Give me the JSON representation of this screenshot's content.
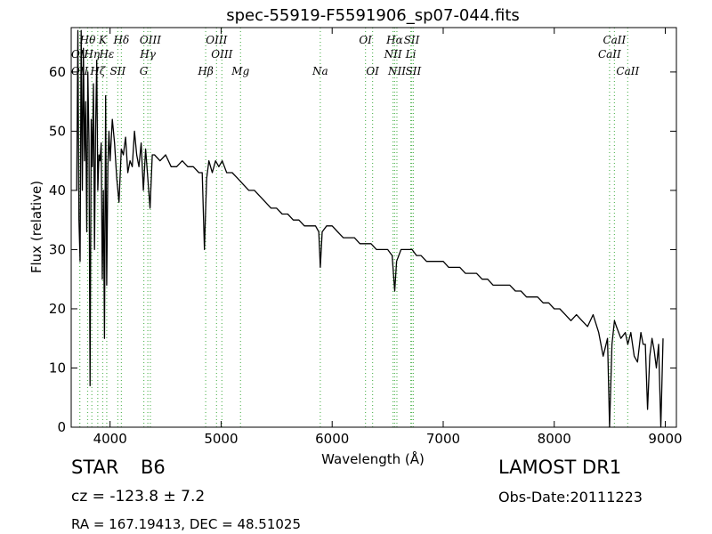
{
  "chart_data": {
    "type": "line",
    "title": "spec-55919-F5591906_sp07-044.fits",
    "xlabel": "Wavelength (Å)",
    "ylabel": "Flux (relative)",
    "xlim": [
      3650,
      9100
    ],
    "ylim": [
      0,
      67.5
    ],
    "xticks": [
      4000,
      5000,
      6000,
      7000,
      8000,
      9000
    ],
    "xtick_labels": [
      "4000",
      "5000",
      "6000",
      "7000",
      "8000",
      "9000"
    ],
    "yticks": [
      0,
      10,
      20,
      30,
      40,
      50,
      60
    ],
    "ytick_labels": [
      "0",
      "10",
      "20",
      "30",
      "40",
      "50",
      "60"
    ],
    "grid": false,
    "line_color": "#000000",
    "marker_color": "#5cb85c",
    "spectrum": {
      "x": [
        3700,
        3710,
        3720,
        3730,
        3740,
        3750,
        3760,
        3770,
        3780,
        3790,
        3800,
        3810,
        3820,
        3830,
        3840,
        3850,
        3860,
        3870,
        3880,
        3890,
        3900,
        3910,
        3920,
        3930,
        3940,
        3950,
        3960,
        3970,
        3980,
        3990,
        4000,
        4020,
        4040,
        4060,
        4080,
        4101,
        4120,
        4140,
        4160,
        4180,
        4200,
        4220,
        4240,
        4260,
        4280,
        4300,
        4320,
        4340,
        4360,
        4380,
        4400,
        4450,
        4500,
        4550,
        4600,
        4650,
        4700,
        4750,
        4800,
        4830,
        4850,
        4861,
        4870,
        4890,
        4920,
        4950,
        4980,
        5010,
        5050,
        5100,
        5150,
        5200,
        5250,
        5300,
        5350,
        5400,
        5450,
        5500,
        5550,
        5600,
        5650,
        5700,
        5750,
        5800,
        5850,
        5880,
        5893,
        5910,
        5950,
        6000,
        6050,
        6100,
        6150,
        6200,
        6250,
        6300,
        6350,
        6400,
        6450,
        6500,
        6540,
        6563,
        6580,
        6620,
        6680,
        6720,
        6760,
        6800,
        6850,
        6900,
        6950,
        7000,
        7050,
        7100,
        7150,
        7200,
        7250,
        7300,
        7350,
        7400,
        7450,
        7500,
        7550,
        7600,
        7650,
        7700,
        7750,
        7800,
        7850,
        7900,
        7950,
        8000,
        8050,
        8100,
        8150,
        8200,
        8250,
        8300,
        8350,
        8400,
        8440,
        8480,
        8498,
        8520,
        8542,
        8560,
        8600,
        8640,
        8662,
        8690,
        8720,
        8750,
        8780,
        8800,
        8820,
        8840,
        8860,
        8880,
        8900,
        8920,
        8940,
        8960,
        8980
      ],
      "y": [
        40,
        67,
        35,
        28,
        67,
        40,
        64,
        45,
        55,
        33,
        60,
        48,
        7,
        52,
        44,
        58,
        30,
        50,
        62,
        40,
        46,
        45,
        48,
        25,
        40,
        15,
        56,
        24,
        44,
        50,
        45,
        52,
        48,
        42,
        38,
        47,
        46,
        49,
        43,
        45,
        44,
        50,
        46,
        44,
        48,
        40,
        47,
        42,
        37,
        46,
        46,
        45,
        46,
        44,
        44,
        45,
        44,
        44,
        43,
        43,
        30,
        37,
        42,
        45,
        43,
        45,
        44,
        45,
        43,
        43,
        42,
        41,
        40,
        40,
        39,
        38,
        37,
        37,
        36,
        36,
        35,
        35,
        34,
        34,
        34,
        33,
        27,
        33,
        34,
        34,
        33,
        32,
        32,
        32,
        31,
        31,
        31,
        30,
        30,
        30,
        29,
        23,
        28,
        30,
        30,
        30,
        29,
        29,
        28,
        28,
        28,
        28,
        27,
        27,
        27,
        26,
        26,
        26,
        25,
        25,
        24,
        24,
        24,
        24,
        23,
        23,
        22,
        22,
        22,
        21,
        21,
        20,
        20,
        19,
        18,
        19,
        18,
        17,
        19,
        16,
        12,
        15,
        0,
        14,
        18,
        17,
        15,
        16,
        14,
        16,
        12,
        11,
        16,
        14,
        14,
        3,
        12,
        15,
        13,
        10,
        14,
        0,
        15
      ]
    },
    "lines_top": [
      {
        "label": "Hθ",
        "x": 3798
      },
      {
        "label": "K",
        "x": 3934
      },
      {
        "label": "Hδ",
        "x": 4102
      },
      {
        "label": "OIII",
        "x": 4363
      },
      {
        "label": "OIII",
        "x": 4959
      },
      {
        "label": "OI",
        "x": 6300
      },
      {
        "label": "Hα",
        "x": 6563
      },
      {
        "label": "SII",
        "x": 6716
      },
      {
        "label": "CaII",
        "x": 8542
      }
    ],
    "lines_mid_upper": [
      {
        "label": "OII",
        "x": 3727
      },
      {
        "label": "Hη",
        "x": 3836
      },
      {
        "label": "Hε",
        "x": 3970
      },
      {
        "label": "Hγ",
        "x": 4340
      },
      {
        "label": "OIII",
        "x": 5007
      },
      {
        "label": "NII",
        "x": 6548
      },
      {
        "label": "Li",
        "x": 6708
      },
      {
        "label": "CaII",
        "x": 8498
      }
    ],
    "lines_mid_lower": [
      {
        "label": "OII",
        "x": 3727
      },
      {
        "label": "Hζ",
        "x": 3889
      },
      {
        "label": "SII",
        "x": 4070
      },
      {
        "label": "G",
        "x": 4304
      },
      {
        "label": "Hβ",
        "x": 4861
      },
      {
        "label": "Mg",
        "x": 5175
      },
      {
        "label": "Na",
        "x": 5893
      },
      {
        "label": "OI",
        "x": 6364
      },
      {
        "label": "NII",
        "x": 6583
      },
      {
        "label": "SII",
        "x": 6731
      },
      {
        "label": "CaII",
        "x": 8662
      }
    ]
  },
  "info": {
    "class": "STAR",
    "subclass": "B6",
    "redshift": "cz = -123.8 ± 7.2",
    "coords": "RA = 167.19413, DEC = 48.51025",
    "survey": "LAMOST DR1",
    "obs_date": "Obs-Date:20111223"
  }
}
